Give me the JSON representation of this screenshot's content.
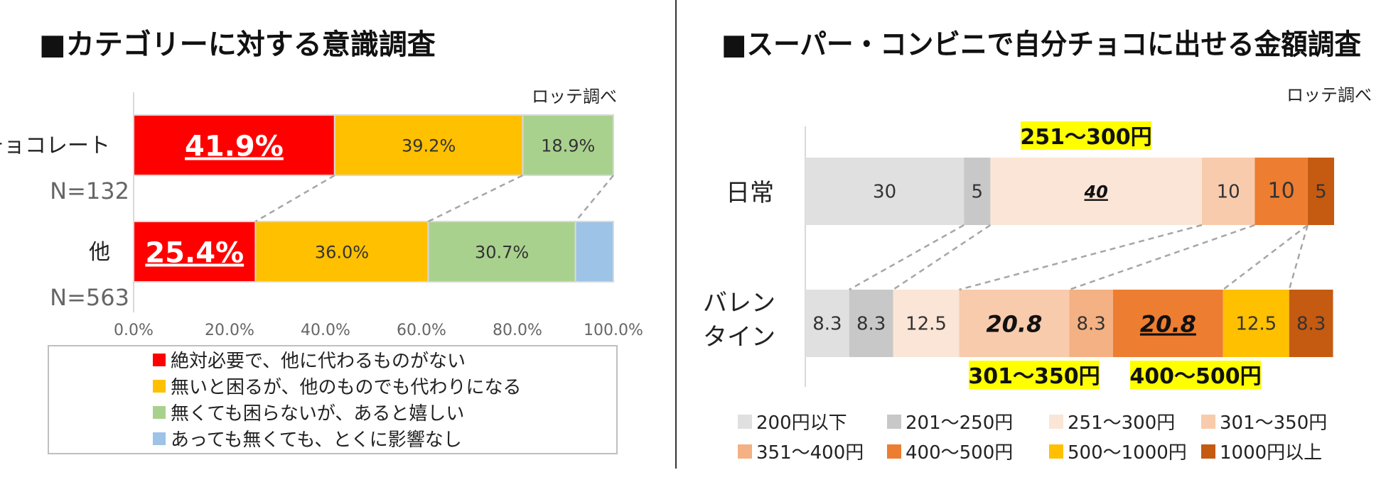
{
  "left": {
    "title": "■カテゴリーに対する意識調査",
    "source": "ロッテ調べ"
  },
  "right": {
    "title": "■スーパー・コンビニで自分チョコに出せる金額調査",
    "source": "ロッテ調べ",
    "highlights": [
      "251〜300円",
      "301〜350円",
      "400〜500円"
    ]
  },
  "chart_data": [
    {
      "type": "bar",
      "orientation": "horizontal",
      "stacked": true,
      "percent": true,
      "categories": [
        "チョコレート",
        "他"
      ],
      "sample_sizes": [
        "N=132",
        "N=563"
      ],
      "xlim": [
        0,
        100
      ],
      "ticks": [
        "0.0%",
        "20.0%",
        "40.0%",
        "60.0%",
        "80.0%",
        "100.0%"
      ],
      "series": [
        {
          "name": "絶対必要で、他に代わるものがない",
          "color": "#FF0000",
          "values": [
            41.9,
            25.4
          ],
          "labels": [
            "41.9%",
            "25.4%"
          ]
        },
        {
          "name": "無いと困るが、他のものでも代わりになる",
          "color": "#FFC000",
          "values": [
            39.2,
            36.0
          ],
          "labels": [
            "39.2%",
            "36.0%"
          ]
        },
        {
          "name": "無くても困らないが、あると嬉しい",
          "color": "#A9D18E",
          "values": [
            18.9,
            30.7
          ],
          "labels": [
            "18.9%",
            "30.7%"
          ]
        },
        {
          "name": "あっても無くても、とくに影響なし",
          "color": "#9DC3E6",
          "values": [
            0,
            7.9
          ],
          "labels": [
            "",
            ""
          ]
        }
      ]
    },
    {
      "type": "bar",
      "orientation": "horizontal",
      "stacked": true,
      "percent": true,
      "categories": [
        "日常",
        "バレンタイン"
      ],
      "xlim": [
        0,
        100
      ],
      "series": [
        {
          "name": "200円以下",
          "color": "#E0E0E0",
          "values": [
            30,
            8.3
          ],
          "labels": [
            "30",
            "8.3"
          ]
        },
        {
          "name": "201〜250円",
          "color": "#C8C8C8",
          "values": [
            5,
            8.3
          ],
          "labels": [
            "5",
            "8.3"
          ]
        },
        {
          "name": "251〜300円",
          "color": "#FBE5D6",
          "values": [
            40,
            12.5
          ],
          "labels": [
            "40",
            "12.5"
          ]
        },
        {
          "name": "301〜350円",
          "color": "#F8CBAD",
          "values": [
            10,
            20.8
          ],
          "labels": [
            "10",
            "20.8"
          ]
        },
        {
          "name": "351〜400円",
          "color": "#F4B183",
          "values": [
            0,
            8.3
          ],
          "labels": [
            "",
            "8.3"
          ]
        },
        {
          "name": "400〜500円",
          "color": "#ED7D31",
          "values": [
            10,
            20.8
          ],
          "labels": [
            "10",
            "20.8"
          ]
        },
        {
          "name": "500〜1000円",
          "color": "#FFC000",
          "values": [
            0,
            12.5
          ],
          "labels": [
            "",
            "12.5"
          ]
        },
        {
          "name": "1000円以上",
          "color": "#C55A11",
          "values": [
            5,
            8.3
          ],
          "labels": [
            "5",
            "8.3"
          ]
        }
      ]
    }
  ]
}
